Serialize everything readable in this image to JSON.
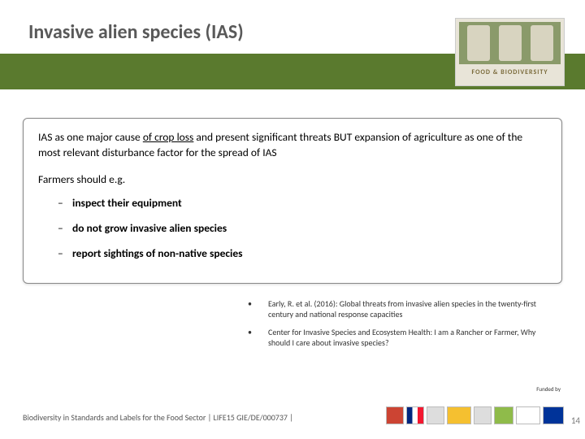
{
  "header": {
    "title": "Invasive alien species (IAS)",
    "logo_label": "FOOD & BIODIVERSITY",
    "bar_color": "#5a7a2e"
  },
  "content": {
    "intro_pre": "IAS as one major cause ",
    "intro_underlined": "of crop loss",
    "intro_post": " and present significant threats BUT expansion of agriculture as one of the most relevant disturbance factor for the spread of IAS",
    "farmers_label": "Farmers should e.g.",
    "bullets": [
      "inspect their equipment",
      "do not grow invasive alien species",
      "report sightings of non-native species"
    ]
  },
  "references": [
    "Early, R. et al. (2016): Global threats from invasive alien species in the twenty-first century and national response capacities",
    "Center for Invasive Species and Ecosystem Health: I am a Rancher or Farmer, Why should I care about invasive species?"
  ],
  "footer": {
    "text": "Biodiversity in Standards and Labels for the Food Sector | LIFE15 GIE/DE/000737 |",
    "funded_label": "Funded by",
    "page_number": "14"
  },
  "colors": {
    "title": "#595959",
    "box_border": "#888888",
    "text": "#000000",
    "footer_text": "#555555"
  }
}
